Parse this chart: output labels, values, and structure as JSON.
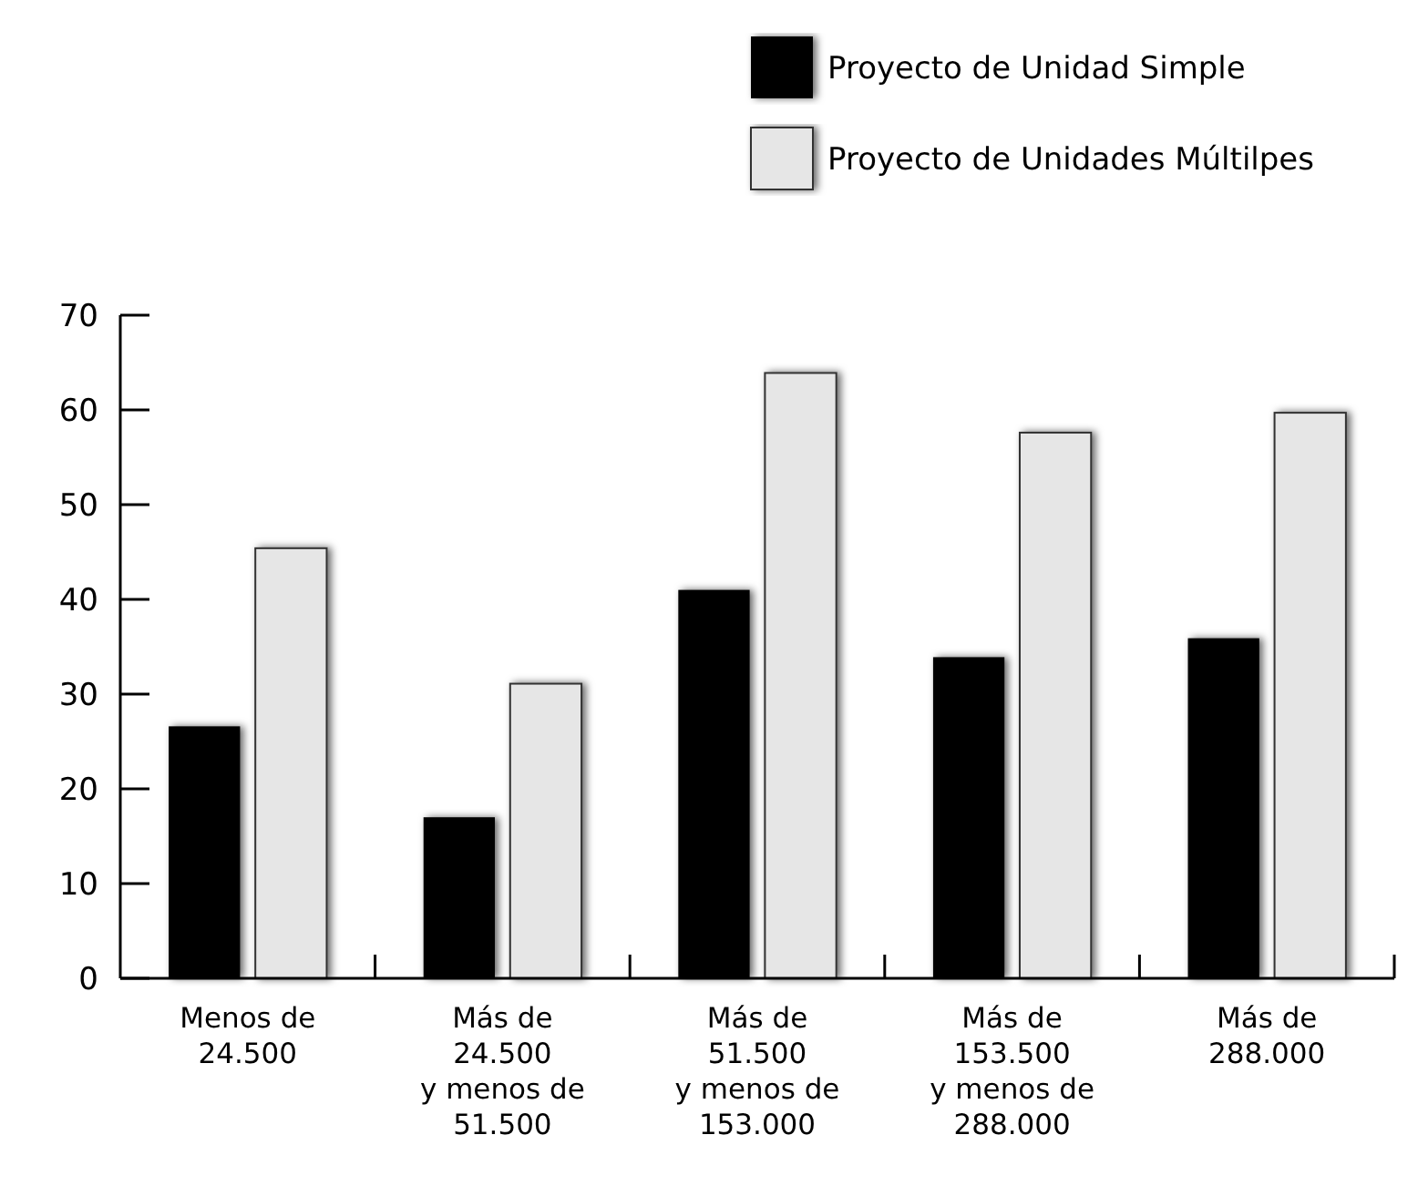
{
  "chart_data": {
    "type": "bar",
    "categories": [
      "Menos de\n24.500",
      "Más de\n24.500\ny menos de\n51.500",
      "Más de\n51.500\ny menos de\n153.000",
      "Más de\n153.500\ny menos de\n288.000",
      "Más de\n288.000"
    ],
    "series": [
      {
        "name": "Proyecto de Unidad Simple",
        "color": "#000000",
        "values": [
          26.6,
          17.0,
          41.0,
          33.9,
          35.9
        ]
      },
      {
        "name": "Proyecto de Unidades Múltilpes",
        "color": "#e6e6e6",
        "values": [
          45.4,
          31.1,
          63.9,
          57.6,
          59.7
        ]
      }
    ],
    "ylim": [
      0,
      70
    ],
    "yticks": [
      0,
      10,
      20,
      30,
      40,
      50,
      60,
      70
    ],
    "grid": false,
    "legend": "top right"
  }
}
